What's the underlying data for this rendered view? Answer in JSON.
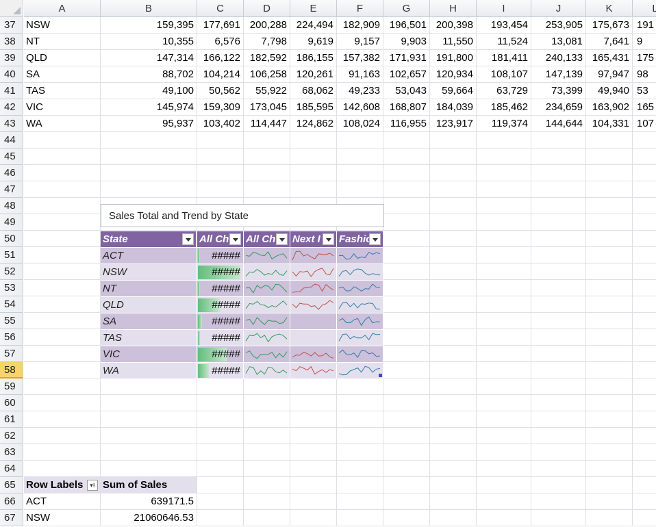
{
  "columns": [
    "A",
    "B",
    "C",
    "D",
    "E",
    "F",
    "G",
    "H",
    "I",
    "J",
    "K",
    "L"
  ],
  "data_rows": [
    {
      "row": "37",
      "state": "NSW",
      "values": [
        "159,395",
        "177,691",
        "200,288",
        "224,494",
        "182,909",
        "196,501",
        "200,398",
        "193,454",
        "253,905",
        "175,673",
        "191"
      ]
    },
    {
      "row": "38",
      "state": "NT",
      "values": [
        "10,355",
        "6,576",
        "7,798",
        "9,619",
        "9,157",
        "9,903",
        "11,550",
        "11,524",
        "13,081",
        "7,641",
        "9"
      ]
    },
    {
      "row": "39",
      "state": "QLD",
      "values": [
        "147,314",
        "166,122",
        "182,592",
        "186,155",
        "157,382",
        "171,931",
        "191,800",
        "181,411",
        "240,133",
        "165,431",
        "175"
      ]
    },
    {
      "row": "40",
      "state": "SA",
      "values": [
        "88,702",
        "104,214",
        "106,258",
        "120,261",
        "91,163",
        "102,657",
        "120,934",
        "108,107",
        "147,139",
        "97,947",
        "98"
      ]
    },
    {
      "row": "41",
      "state": "TAS",
      "values": [
        "49,100",
        "50,562",
        "55,922",
        "68,062",
        "49,233",
        "53,043",
        "59,664",
        "63,729",
        "73,399",
        "49,940",
        "53"
      ]
    },
    {
      "row": "42",
      "state": "VIC",
      "values": [
        "145,974",
        "159,309",
        "173,045",
        "185,595",
        "142,608",
        "168,807",
        "184,039",
        "185,462",
        "234,659",
        "163,902",
        "165"
      ]
    },
    {
      "row": "43",
      "state": "WA",
      "values": [
        "95,937",
        "103,402",
        "114,447",
        "124,862",
        "108,024",
        "116,955",
        "123,917",
        "119,374",
        "144,644",
        "104,331",
        "107"
      ]
    }
  ],
  "empty_rows_top": [
    "44",
    "45",
    "46",
    "47",
    "48",
    "49",
    "50",
    "51",
    "52",
    "53",
    "54",
    "55",
    "56",
    "57",
    "58",
    "59",
    "60",
    "61",
    "62",
    "63",
    "64",
    "65",
    "66",
    "67"
  ],
  "active_row": "58",
  "title_box": {
    "text": "Sales Total and Trend by State"
  },
  "table": {
    "headers": [
      "State",
      "All Ch",
      "All Ch",
      "Next I",
      "Fashio"
    ],
    "rows": [
      {
        "state": "ACT",
        "hash": "#####",
        "bar": 0.05,
        "next": true
      },
      {
        "state": "NSW",
        "hash": "#####",
        "bar": 0.97,
        "next": true
      },
      {
        "state": "NT",
        "hash": "#####",
        "bar": 0.05,
        "next": true
      },
      {
        "state": "QLD",
        "hash": "#####",
        "bar": 0.5,
        "next": true
      },
      {
        "state": "SA",
        "hash": "#####",
        "bar": 0.1,
        "next": false
      },
      {
        "state": "TAS",
        "hash": "#####",
        "bar": 0.05,
        "next": false
      },
      {
        "state": "VIC",
        "hash": "#####",
        "bar": 0.65,
        "next": true
      },
      {
        "state": "WA",
        "hash": "#####",
        "bar": 0.25,
        "next": true
      }
    ],
    "spark_colors": {
      "all_channels": "#2e9e5b",
      "next": "#c0504d",
      "fashion": "#2f7ca8"
    }
  },
  "pivot": {
    "row_labels": "Row Labels",
    "sum_label": "Sum of Sales",
    "rows": [
      {
        "label": "ACT",
        "value": "639171.5"
      },
      {
        "label": "NSW",
        "value": "21060646.53"
      }
    ]
  }
}
